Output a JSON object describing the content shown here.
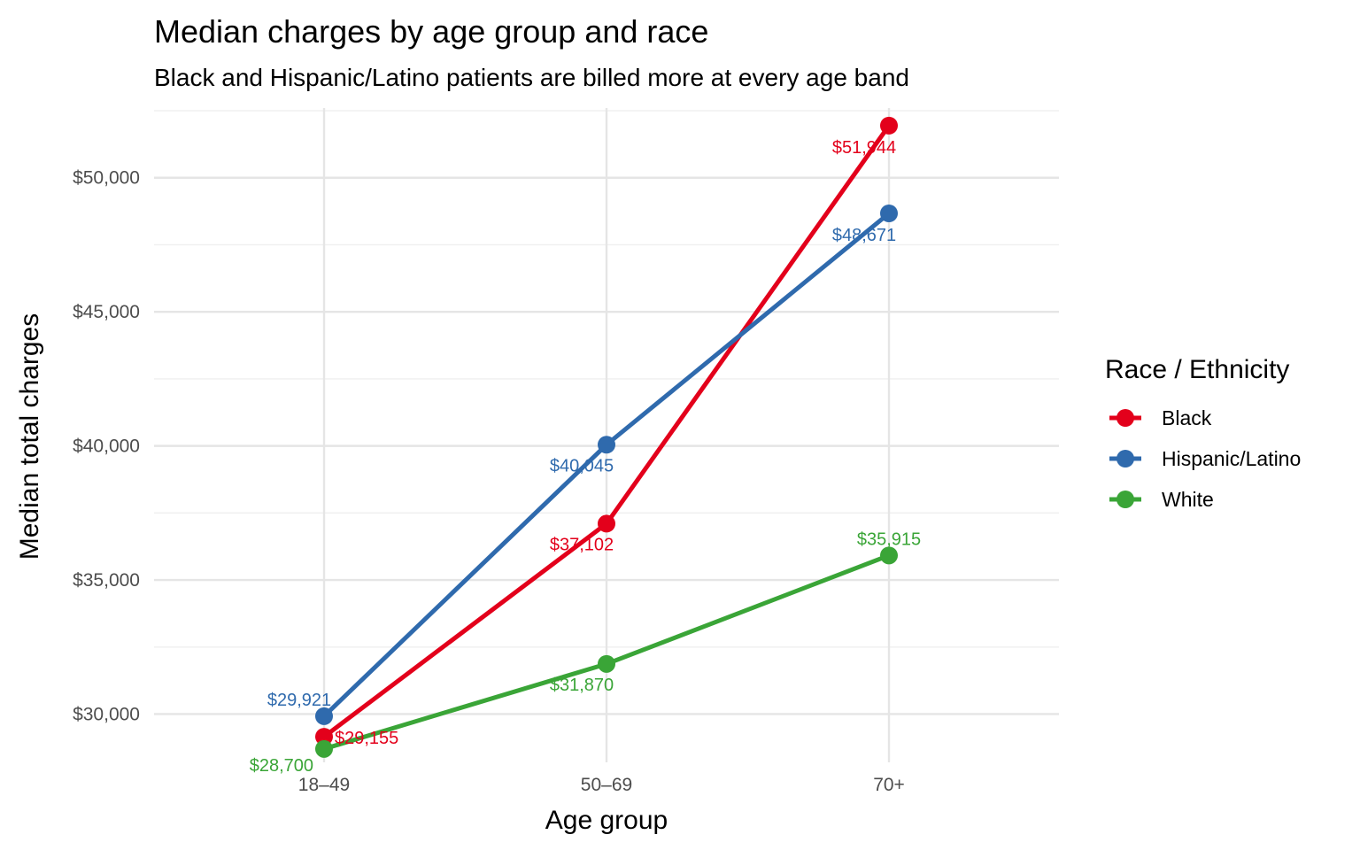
{
  "chart_data": {
    "type": "line",
    "title": "Median charges by age group and race",
    "subtitle": "Black and Hispanic/Latino patients are billed more at every age band",
    "xlabel": "Age group",
    "ylabel": "Median total charges",
    "categories": [
      "18–49",
      "50–69",
      "70+"
    ],
    "ylim": [
      28200,
      52600
    ],
    "y_ticks": [
      30000,
      35000,
      40000,
      45000,
      50000
    ],
    "y_tick_labels": [
      "$30,000",
      "$35,000",
      "$40,000",
      "$45,000",
      "$50,000"
    ],
    "grid": true,
    "legend": {
      "title": "Race / Ethnicity",
      "position": "right"
    },
    "series": [
      {
        "name": "Black",
        "color": "#e3001b",
        "values": [
          29155,
          37102,
          51944
        ],
        "labels": [
          "$29,155",
          "$37,102",
          "$51,944"
        ]
      },
      {
        "name": "Hispanic/Latino",
        "color": "#2f6aad",
        "values": [
          29921,
          40045,
          48671
        ],
        "labels": [
          "$29,921",
          "$40,045",
          "$48,671"
        ]
      },
      {
        "name": "White",
        "color": "#3aa537",
        "values": [
          28700,
          31870,
          35915
        ],
        "labels": [
          "$28,700",
          "$31,870",
          "$35,915"
        ]
      }
    ]
  }
}
